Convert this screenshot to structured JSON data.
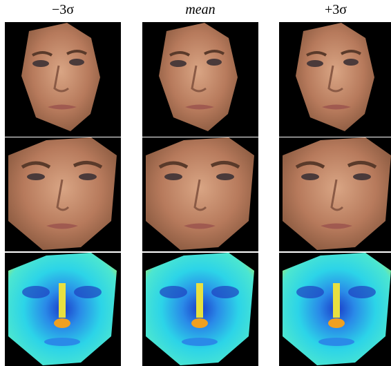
{
  "columns": [
    "−3σ",
    "mean",
    "+3σ"
  ]
}
